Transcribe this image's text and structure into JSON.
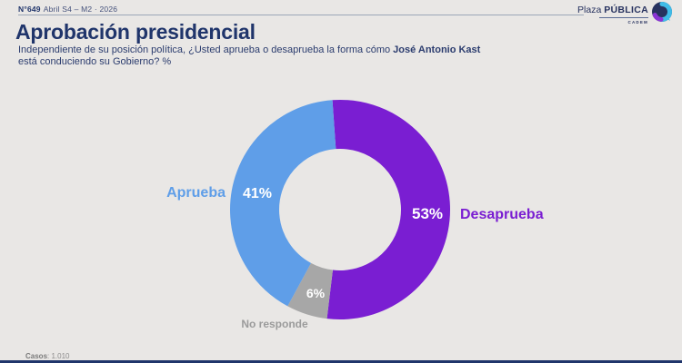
{
  "header": {
    "edition": "N°649",
    "date": "Abril S4 – M2 · 2026",
    "logo": {
      "plaza": "Plaza",
      "publica": "PÚBLICA",
      "cadem": "CADEM"
    }
  },
  "title": "Aprobación presidencial",
  "subtitle": {
    "text_before": "Independiente de su posición política, ¿Usted aprueba o desaprueba la forma cómo",
    "bold_name": "José Antonio Kast",
    "text_after": "está conduciendo su Gobierno? %"
  },
  "chart_data": {
    "type": "pie",
    "donut": true,
    "categories": [
      "Desaprueba",
      "No responde",
      "Aprueba"
    ],
    "values": [
      53,
      6,
      41
    ],
    "value_labels": [
      "53%",
      "6%",
      "41%"
    ],
    "colors": [
      "#7A1ED2",
      "#A7A7A7",
      "#5F9EE8"
    ],
    "start_angle_deg": -4,
    "direction": "clockwise",
    "no_responde_label_color": "#9B9B9B",
    "background": "#E9E7E5"
  },
  "footer": {
    "casos_label": "Casos",
    "casos_value": ": 1.010"
  }
}
